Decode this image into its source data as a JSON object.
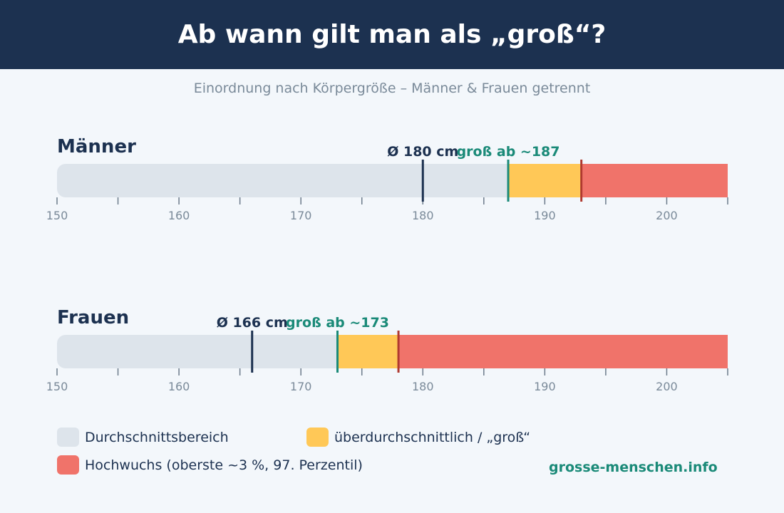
{
  "header": {
    "title": "Ab wann gilt man als „groß“?"
  },
  "subtitle": "Einordnung nach Körpergröße – Männer & Frauen getrennt",
  "colors": {
    "average": "#dde4eb",
    "tall": "#ffc857",
    "very_tall": "#f0736a",
    "avg_marker": "#1c3150",
    "tall_marker": "#1a8a78",
    "very_tall_marker": "#b03a30",
    "axis": "#6b7a8a"
  },
  "chart_data": [
    {
      "type": "bar",
      "orientation": "horizontal",
      "title": "Männer",
      "x_range": [
        150,
        205
      ],
      "x_ticks": [
        150,
        160,
        170,
        180,
        190,
        200
      ],
      "x_minor_ticks": [
        155,
        165,
        175,
        185,
        195,
        205
      ],
      "segments": [
        {
          "category": "average",
          "from": 150,
          "to": 187
        },
        {
          "category": "tall",
          "from": 187,
          "to": 193
        },
        {
          "category": "very_tall",
          "from": 193,
          "to": 205
        }
      ],
      "markers": [
        {
          "value": 180,
          "label": "Ø 180 cm",
          "kind": "avg"
        },
        {
          "value": 187,
          "label": "groß ab ~187",
          "kind": "tall"
        },
        {
          "value": 193,
          "label": "",
          "kind": "very_tall"
        }
      ]
    },
    {
      "type": "bar",
      "orientation": "horizontal",
      "title": "Frauen",
      "x_range": [
        150,
        205
      ],
      "x_ticks": [
        150,
        160,
        170,
        180,
        190,
        200
      ],
      "x_minor_ticks": [
        155,
        165,
        175,
        185,
        195,
        205
      ],
      "segments": [
        {
          "category": "average",
          "from": 150,
          "to": 173
        },
        {
          "category": "tall",
          "from": 173,
          "to": 178
        },
        {
          "category": "very_tall",
          "from": 178,
          "to": 205
        }
      ],
      "markers": [
        {
          "value": 166,
          "label": "Ø 166 cm",
          "kind": "avg"
        },
        {
          "value": 173,
          "label": "groß ab ~173",
          "kind": "tall"
        },
        {
          "value": 178,
          "label": "",
          "kind": "very_tall"
        }
      ]
    }
  ],
  "legend": [
    {
      "key": "average",
      "label": "Durchschnittsbereich"
    },
    {
      "key": "tall",
      "label": "überdurchschnittlich / „groß“"
    },
    {
      "key": "very_tall",
      "label": "Hochwuchs (oberste ~3 %, 97. Perzentil)"
    }
  ],
  "source": "grosse-menschen.info"
}
